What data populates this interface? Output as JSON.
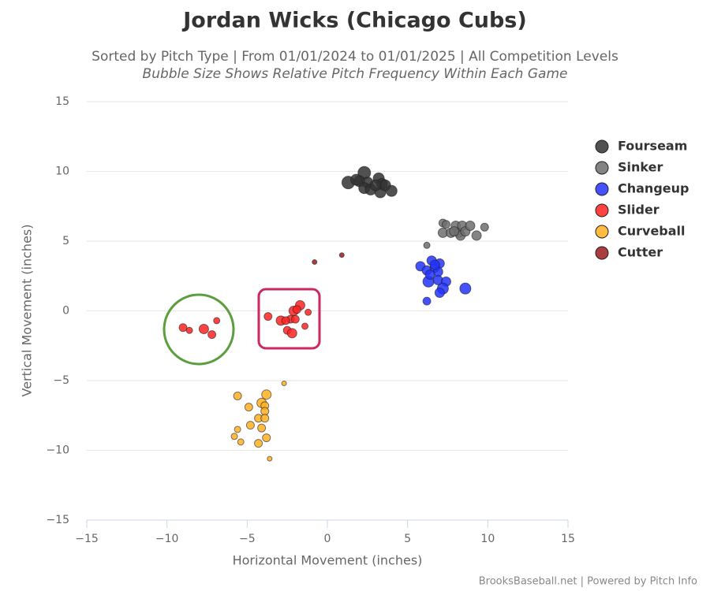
{
  "chart_data": {
    "type": "scatter",
    "title": "Jordan Wicks (Chicago Cubs)",
    "subtitle": "Sorted by Pitch Type | From 01/01/2024 to 01/01/2025 | All Competition Levels",
    "subtitle2": "Bubble Size Shows Relative Pitch Frequency Within Each Game",
    "x_label": "Horizontal Movement (inches)",
    "y_label": "Vertical Movement (inches)",
    "credit": "BrooksBaseball.net | Powered by Pitch Info",
    "xlim": [
      -15,
      15
    ],
    "ylim": [
      -15,
      15
    ],
    "xticks": [
      {
        "value": -15,
        "label": "−15"
      },
      {
        "value": -10,
        "label": "−10"
      },
      {
        "value": -5,
        "label": "−5"
      },
      0,
      5,
      10,
      15
    ],
    "yticks": [
      {
        "value": -15,
        "label": "−15"
      },
      {
        "value": -10,
        "label": "−10"
      },
      {
        "value": -5,
        "label": "−5"
      },
      0,
      5,
      10,
      15
    ],
    "grid": true,
    "legend": "right",
    "series": [
      {
        "name": "Fourseam",
        "color": "#333333",
        "x": [
          1.3,
          2.3,
          2.0,
          2.5,
          2.3,
          2.7,
          3.2,
          3.4,
          3.3,
          3.6,
          4.0,
          3.0,
          1.8
        ],
        "values": [
          9.2,
          9.9,
          9.3,
          9.2,
          8.8,
          8.7,
          9.5,
          9.1,
          8.5,
          9.0,
          8.6,
          9.0,
          9.4
        ],
        "sizes": [
          8,
          8,
          7,
          7,
          7,
          7,
          7,
          7,
          7,
          7,
          7,
          7,
          7
        ]
      },
      {
        "name": "Sinker",
        "color": "#6e6e6e",
        "x": [
          6.2,
          7.2,
          7.4,
          7.2,
          7.7,
          8.0,
          8.2,
          8.4,
          8.3,
          8.6,
          8.9,
          9.3,
          9.8,
          7.9
        ],
        "values": [
          4.7,
          6.3,
          6.2,
          5.6,
          5.6,
          6.1,
          5.6,
          6.1,
          5.4,
          5.7,
          6.1,
          5.4,
          6.0,
          5.7
        ],
        "sizes": [
          4,
          5,
          5,
          6,
          6,
          6,
          6,
          6,
          6,
          6,
          6,
          6,
          5,
          6
        ]
      },
      {
        "name": "Changeup",
        "color": "#2233ff",
        "x": [
          5.8,
          6.2,
          6.5,
          6.7,
          7.0,
          6.9,
          6.3,
          6.9,
          7.4,
          7.2,
          7.0,
          8.6,
          6.2,
          6.4,
          6.7
        ],
        "values": [
          3.2,
          2.9,
          3.6,
          3.1,
          3.4,
          2.8,
          2.1,
          2.2,
          2.1,
          1.6,
          1.3,
          1.6,
          0.7,
          2.6,
          3.3
        ],
        "sizes": [
          6,
          6,
          6,
          6,
          6,
          6,
          7,
          6,
          6,
          7,
          6,
          7,
          5,
          6,
          6
        ]
      },
      {
        "name": "Slider",
        "color": "#ff2222",
        "x": [
          -9.0,
          -8.6,
          -7.7,
          -7.2,
          -6.9,
          -3.7,
          -2.9,
          -2.3,
          -2.1,
          -1.7,
          -1.9,
          -2.5,
          -2.2,
          -1.4,
          -1.2,
          -2.6,
          -2.0
        ],
        "values": [
          -1.2,
          -1.4,
          -1.3,
          -1.7,
          -0.7,
          -0.4,
          -0.7,
          -0.6,
          0.0,
          0.4,
          0.1,
          -1.4,
          -1.6,
          -1.1,
          -0.1,
          -0.7,
          -0.6
        ],
        "sizes": [
          5,
          4,
          6,
          5,
          4,
          5,
          6,
          5,
          6,
          6,
          5,
          5,
          6,
          4,
          4,
          5,
          5
        ]
      },
      {
        "name": "Curveball",
        "color": "#ffb020",
        "x": [
          -2.7,
          -5.6,
          -3.8,
          -4.1,
          -4.9,
          -3.9,
          -3.9,
          -4.3,
          -3.9,
          -4.8,
          -4.1,
          -5.6,
          -5.8,
          -3.8,
          -5.4,
          -4.3,
          -3.6
        ],
        "values": [
          -5.2,
          -6.1,
          -6.0,
          -6.6,
          -6.9,
          -6.8,
          -7.2,
          -7.7,
          -7.7,
          -8.2,
          -8.4,
          -8.5,
          -9.0,
          -9.1,
          -9.4,
          -9.5,
          -10.6
        ],
        "sizes": [
          3,
          5,
          6,
          6,
          5,
          5,
          5,
          5,
          5,
          5,
          5,
          4,
          4,
          5,
          4,
          5,
          3
        ]
      },
      {
        "name": "Cutter",
        "color": "#9b1c1c",
        "x": [
          -0.8,
          0.9
        ],
        "values": [
          3.5,
          4.0
        ],
        "sizes": [
          3,
          3
        ]
      }
    ]
  }
}
